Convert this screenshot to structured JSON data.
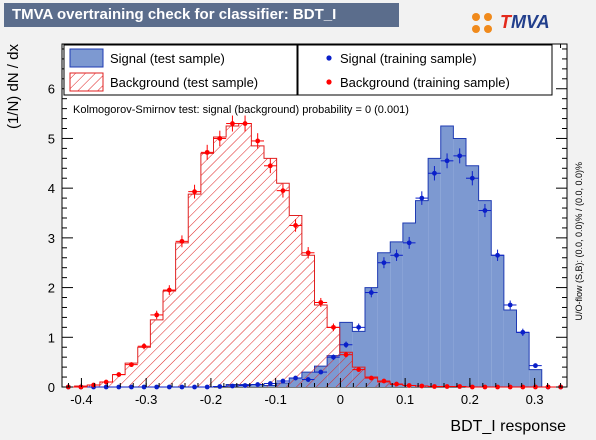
{
  "title": "TMVA overtraining check for classifier: BDT_I",
  "logo": {
    "t": "T",
    "rest": "MVA"
  },
  "side_note": "U/O-flow (S,B): (0.0, 0.0)% / (0.0, 0.0)%",
  "ks_text": "Kolmogorov-Smirnov test: signal (background) probability =     0 (0.001)",
  "colors": {
    "signal_fill": "#7d99d1",
    "signal_line": "#1f3bb3",
    "signal_marker": "#0a1fc9",
    "background_hatch": "#e02020",
    "background_marker": "#ff0000",
    "title_bg": "#5b6d8c",
    "page_bg": "#f2f2f2"
  },
  "chart_data": {
    "type": "bar",
    "xlabel": "BDT_I response",
    "ylabel": "(1/N) dN / dx",
    "xlim": [
      -0.43,
      0.35
    ],
    "ylim": [
      0,
      6.9
    ],
    "x_ticks": [
      "-0.4",
      "-0.3",
      "-0.2",
      "-0.1",
      "0",
      "0.1",
      "0.2",
      "0.3"
    ],
    "x_tick_values": [
      -0.4,
      -0.3,
      -0.2,
      -0.1,
      0,
      0.1,
      0.2,
      0.3
    ],
    "y_ticks": [
      "0",
      "1",
      "2",
      "3",
      "4",
      "5",
      "6"
    ],
    "y_tick_values": [
      0,
      1,
      2,
      3,
      4,
      5,
      6
    ],
    "bin_low": -0.43,
    "bin_width": 0.0195,
    "legend": [
      {
        "label": "Signal (test sample)",
        "kind": "signal-box"
      },
      {
        "label": "Background (test sample)",
        "kind": "background-box"
      },
      {
        "label": "Signal (training sample)",
        "kind": "signal-dot"
      },
      {
        "label": "Background (training sample)",
        "kind": "background-dot"
      }
    ],
    "series": [
      {
        "name": "Signal (test sample)",
        "style": "histogram-filled",
        "values": [
          0,
          0,
          0,
          0,
          0,
          0,
          0,
          0,
          0,
          0,
          0,
          0,
          0.01,
          0.05,
          0.05,
          0.05,
          0.03,
          0.08,
          0.18,
          0.3,
          0.42,
          0.63,
          1.3,
          1.12,
          2.0,
          2.7,
          2.92,
          3.3,
          3.75,
          4.6,
          5.25,
          5.0,
          4.45,
          3.75,
          2.65,
          1.55,
          1.1,
          0.35,
          0.0,
          0.0
        ]
      },
      {
        "name": "Background (test sample)",
        "style": "histogram-hatched",
        "values": [
          0,
          0.02,
          0.04,
          0.1,
          0.25,
          0.48,
          0.8,
          1.35,
          1.93,
          2.9,
          3.88,
          4.7,
          5.03,
          5.25,
          5.3,
          4.85,
          4.6,
          4.1,
          3.45,
          2.65,
          1.65,
          1.2,
          0.7,
          0.4,
          0.2,
          0.1,
          0.05,
          0.03,
          0.02,
          0.01,
          0.01,
          0.01,
          0,
          0,
          0,
          0,
          0,
          0,
          0,
          0
        ]
      },
      {
        "name": "Signal (training sample)",
        "style": "points",
        "values": [
          0,
          0,
          0,
          0,
          0,
          0,
          0,
          0,
          0,
          0,
          0,
          0,
          0.01,
          0.02,
          0.03,
          0.05,
          0.07,
          0.12,
          0.18,
          0.15,
          0.3,
          0.6,
          0.85,
          1.2,
          1.9,
          2.5,
          2.65,
          2.9,
          3.8,
          4.3,
          4.55,
          4.65,
          4.2,
          3.55,
          2.65,
          1.65,
          1.1,
          0.43,
          0.0,
          0.0
        ]
      },
      {
        "name": "Background (training sample)",
        "style": "points",
        "values": [
          0,
          0,
          0.04,
          0.1,
          0.25,
          0.45,
          0.82,
          1.45,
          1.95,
          2.93,
          3.93,
          4.72,
          5.0,
          5.3,
          5.3,
          4.95,
          4.45,
          3.95,
          3.25,
          2.7,
          1.7,
          1.2,
          0.65,
          0.35,
          0.18,
          0.12,
          0.06,
          0.03,
          0.02,
          0.01,
          0.01,
          0.01,
          0,
          0,
          0,
          0,
          0,
          0,
          0,
          0
        ]
      }
    ]
  }
}
